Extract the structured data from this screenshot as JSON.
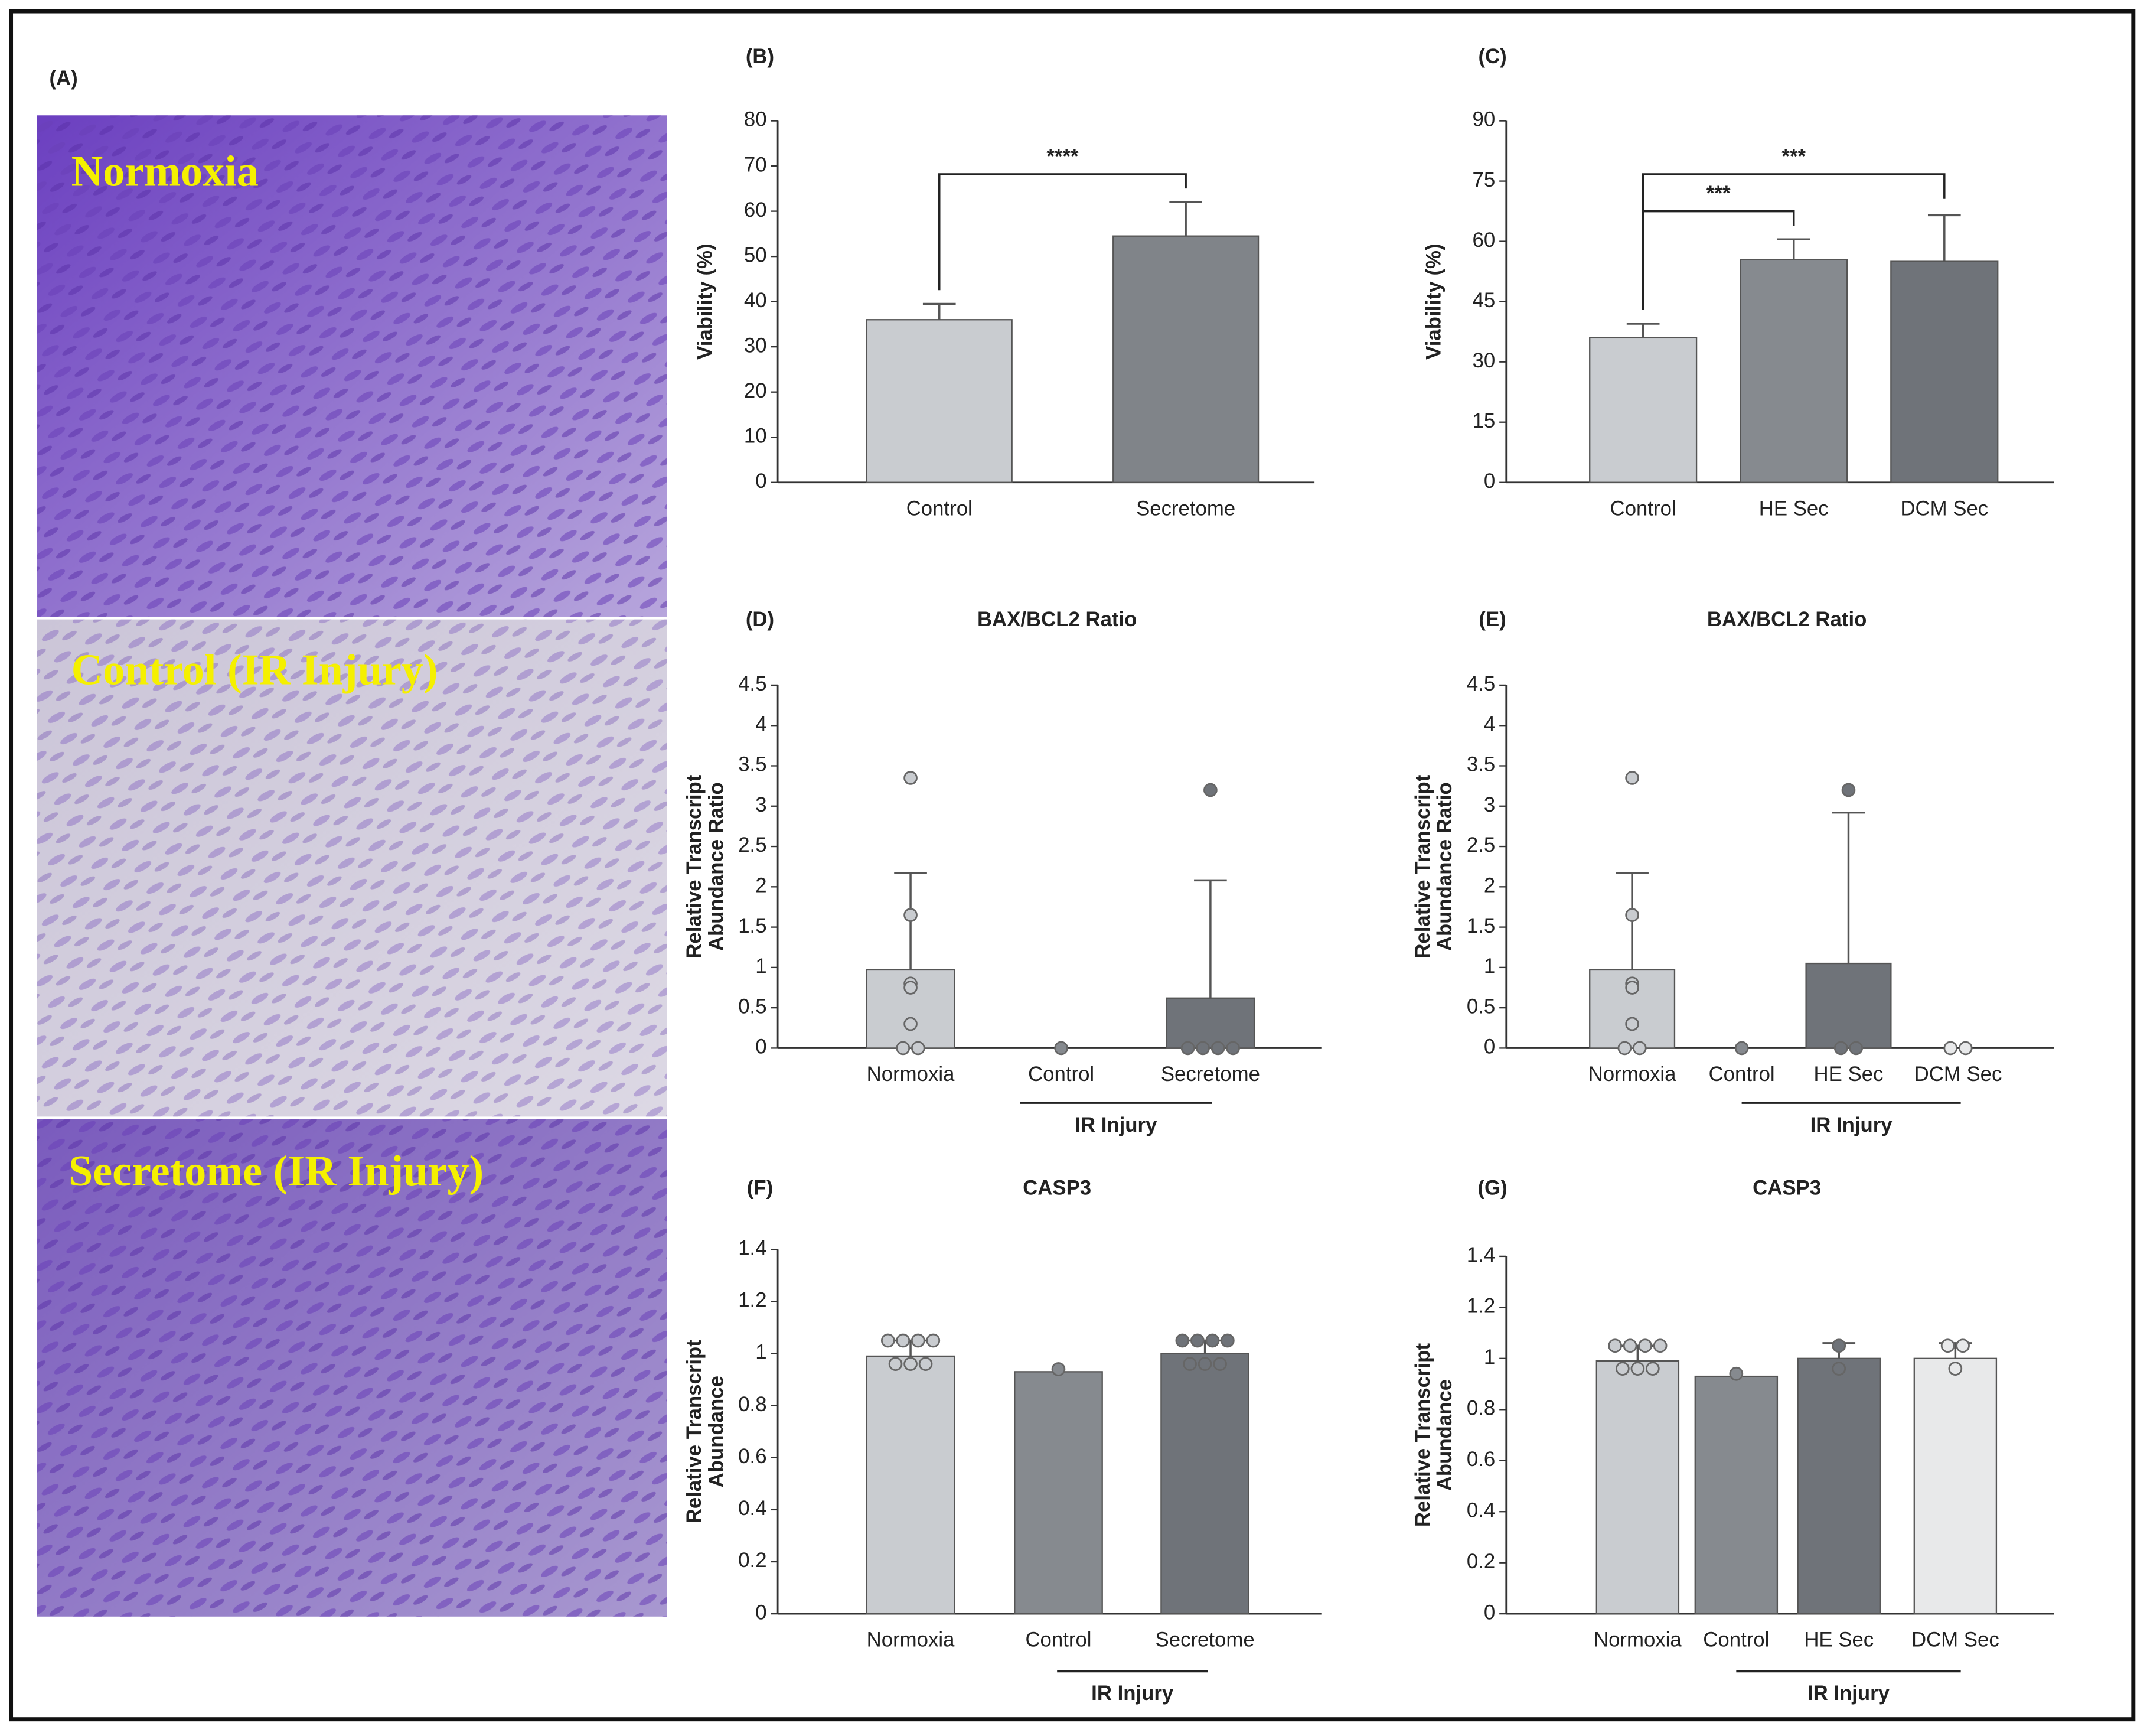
{
  "chart_data": [
    {
      "type": "image",
      "label": "(A)",
      "captions": [
        "Normoxia",
        "Control (IR Injury)",
        "Secretome (IR Injury)"
      ]
    },
    {
      "type": "bar",
      "label": "(B)",
      "ylabel": [
        "Viability (%)"
      ],
      "categories": [
        "Control",
        "Secretome"
      ],
      "values": [
        36,
        54.5
      ],
      "errors": [
        3.5,
        7.5
      ],
      "colors": [
        "#c9ccd0",
        "#808489"
      ],
      "ylim": [
        0,
        80
      ],
      "yticks": [
        0,
        10,
        20,
        30,
        40,
        50,
        60,
        70,
        80
      ],
      "annotations": [
        "****"
      ]
    },
    {
      "type": "bar",
      "label": "(C)",
      "ylabel": [
        "Viability (%)"
      ],
      "categories": [
        "Control",
        "HE Sec",
        "DCM Sec"
      ],
      "values": [
        36,
        55.5,
        55
      ],
      "errors": [
        3.5,
        5,
        11.5
      ],
      "colors": [
        "#c9ccd0",
        "#868a8f",
        "#6f7379"
      ],
      "ylim": [
        0,
        90
      ],
      "yticks": [
        0,
        15,
        30,
        45,
        60,
        75,
        90
      ],
      "annotations": [
        "***",
        "***"
      ]
    },
    {
      "type": "bar",
      "label": "(D)",
      "title": "BAX/BCL2 Ratio",
      "ylabel": [
        "Relative Transcript",
        "Abundance Ratio"
      ],
      "categories": [
        "Normoxia",
        "Control",
        "Secretome"
      ],
      "values": [
        0.97,
        0,
        0.62
      ],
      "errors": [
        1.2,
        0,
        1.46
      ],
      "points": [
        [
          3.35,
          1.65,
          0.8,
          0.75,
          0.3,
          0,
          0
        ],
        [
          0
        ],
        [
          3.2,
          0,
          0,
          0,
          0
        ]
      ],
      "colors": [
        "#c9ccd0",
        "#868a8f",
        "#6f7379"
      ],
      "group_label": "IR Injury",
      "ylim": [
        0,
        4.5
      ],
      "yticks": [
        0,
        0.5,
        1,
        1.5,
        2,
        2.5,
        3,
        3.5,
        4,
        4.5
      ]
    },
    {
      "type": "bar",
      "label": "(E)",
      "title": "BAX/BCL2 Ratio",
      "ylabel": [
        "Relative Transcript",
        "Abundance Ratio"
      ],
      "categories": [
        "Normoxia",
        "Control",
        "HE Sec",
        "DCM Sec"
      ],
      "values": [
        0.97,
        0,
        1.05,
        0
      ],
      "errors": [
        1.2,
        0,
        1.87,
        0
      ],
      "points": [
        [
          3.35,
          1.65,
          0.8,
          0.75,
          0.3,
          0,
          0
        ],
        [
          0
        ],
        [
          3.2,
          0,
          0
        ],
        [
          0,
          0
        ]
      ],
      "colors": [
        "#c9ccd0",
        "#868a8f",
        "#6f7379",
        "#e8e9ea"
      ],
      "group_label": "IR Injury",
      "ylim": [
        0,
        4.5
      ],
      "yticks": [
        0,
        0.5,
        1,
        1.5,
        2,
        2.5,
        3,
        3.5,
        4,
        4.5
      ]
    },
    {
      "type": "bar",
      "label": "(F)",
      "title": "CASP3",
      "ylabel": [
        "Relative Transcript",
        "Abundance"
      ],
      "categories": [
        "Normoxia",
        "Control",
        "Secretome"
      ],
      "values": [
        0.99,
        0.93,
        1.0
      ],
      "errors": [
        0.06,
        0,
        0.05
      ],
      "points": [
        [
          1.05,
          1.05,
          1.05,
          1.05,
          0.96,
          0.96,
          0.96
        ],
        [
          0.94
        ],
        [
          1.05,
          1.05,
          1.05,
          1.05,
          0.96,
          0.96,
          0.96
        ]
      ],
      "colors": [
        "#c9ccd0",
        "#868a8f",
        "#6f7379"
      ],
      "group_label": "IR Injury",
      "ylim": [
        0,
        1.4
      ],
      "yticks": [
        0,
        0.2,
        0.4,
        0.6,
        0.8,
        1,
        1.2,
        1.4
      ]
    },
    {
      "type": "bar",
      "label": "(G)",
      "title": "CASP3",
      "ylabel": [
        "Relative Transcript",
        "Abundance"
      ],
      "categories": [
        "Normoxia",
        "Control",
        "HE Sec",
        "DCM Sec"
      ],
      "values": [
        0.99,
        0.93,
        1.0,
        1.0
      ],
      "errors": [
        0.06,
        0,
        0.06,
        0.06
      ],
      "points": [
        [
          1.05,
          1.05,
          1.05,
          1.05,
          0.96,
          0.96,
          0.96
        ],
        [
          0.94
        ],
        [
          1.05,
          0.96
        ],
        [
          1.05,
          1.05,
          0.96
        ]
      ],
      "colors": [
        "#c9ccd0",
        "#868a8f",
        "#6f7379",
        "#e8e9ea"
      ],
      "group_label": "IR Injury",
      "ylim": [
        0,
        1.4
      ],
      "yticks": [
        0,
        0.2,
        0.4,
        0.6,
        0.8,
        1,
        1.2,
        1.4
      ]
    }
  ]
}
